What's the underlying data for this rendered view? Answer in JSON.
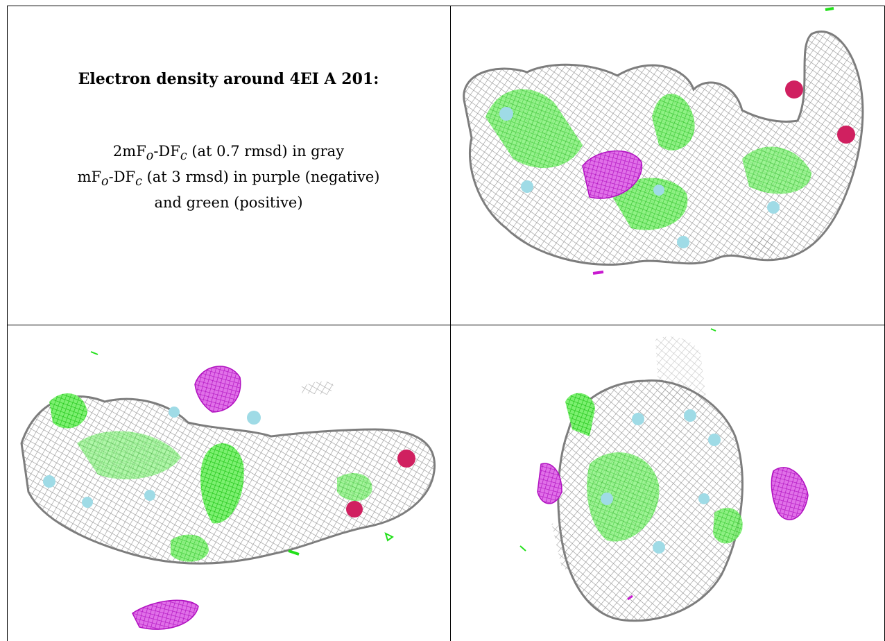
{
  "caption": {
    "title": "Electron density around 4EI A 201:",
    "line1": {
      "prefix": "2mF",
      "sub1": "o",
      "mid": "-DF",
      "sub2": "c",
      "suffix": " (at 0.7 rmsd) in gray"
    },
    "line2": {
      "prefix": "mF",
      "sub1": "o",
      "mid": "-DF",
      "sub2": "c",
      "suffix": " (at 3 rmsd) in purple (negative)"
    },
    "line3": "and green (positive)"
  },
  "colors": {
    "gray_mesh": "#9a9a9a",
    "positive_green": "#22e01a",
    "negative_purple": "#c81ad0",
    "atom_cyan": "#9fdbe6",
    "atom_red": "#d02060"
  }
}
